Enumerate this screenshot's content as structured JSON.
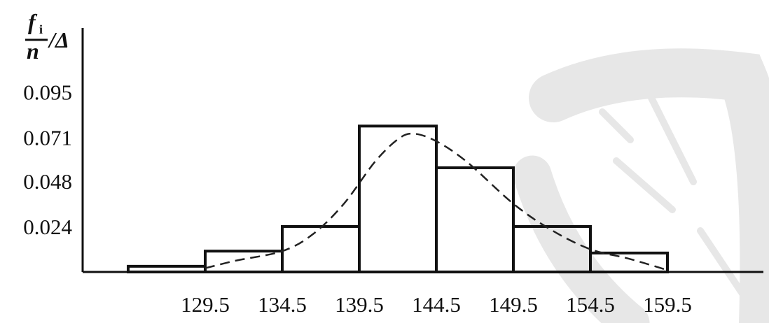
{
  "chart_data": {
    "type": "bar",
    "ylabel": {
      "numerator": "f",
      "subscript": "i",
      "denominator": "n",
      "suffix": "/Δ"
    },
    "yticks": [
      "0.095",
      "0.071",
      "0.048",
      "0.024"
    ],
    "ytick_values": [
      0.095,
      0.071,
      0.048,
      0.024
    ],
    "xticks": [
      "129.5",
      "134.5",
      "139.5",
      "144.5",
      "149.5",
      "154.5",
      "159.5"
    ],
    "xtick_values": [
      129.5,
      134.5,
      139.5,
      144.5,
      149.5,
      154.5,
      159.5
    ],
    "bins": [
      {
        "x0": 124.5,
        "x1": 129.5,
        "value": 0.003
      },
      {
        "x0": 129.5,
        "x1": 134.5,
        "value": 0.011
      },
      {
        "x0": 134.5,
        "x1": 139.5,
        "value": 0.024
      },
      {
        "x0": 139.5,
        "x1": 144.5,
        "value": 0.077
      },
      {
        "x0": 144.5,
        "x1": 149.5,
        "value": 0.055
      },
      {
        "x0": 149.5,
        "x1": 154.5,
        "value": 0.024
      },
      {
        "x0": 154.5,
        "x1": 159.5,
        "value": 0.01
      }
    ],
    "density_curve": {
      "style": "dashed",
      "x": [
        129.5,
        131.5,
        134.5,
        136.5,
        138.5,
        140.5,
        142.0,
        143.0,
        144.5,
        146.5,
        149.5,
        152.0,
        154.5,
        157.0,
        159.5
      ],
      "y": [
        0.002,
        0.006,
        0.011,
        0.02,
        0.036,
        0.058,
        0.07,
        0.073,
        0.069,
        0.058,
        0.036,
        0.022,
        0.012,
        0.007,
        0.001
      ]
    },
    "xlim": [
      122.0,
      172.0
    ],
    "ylim": [
      0,
      0.105
    ],
    "grid": false,
    "legend": "none"
  }
}
